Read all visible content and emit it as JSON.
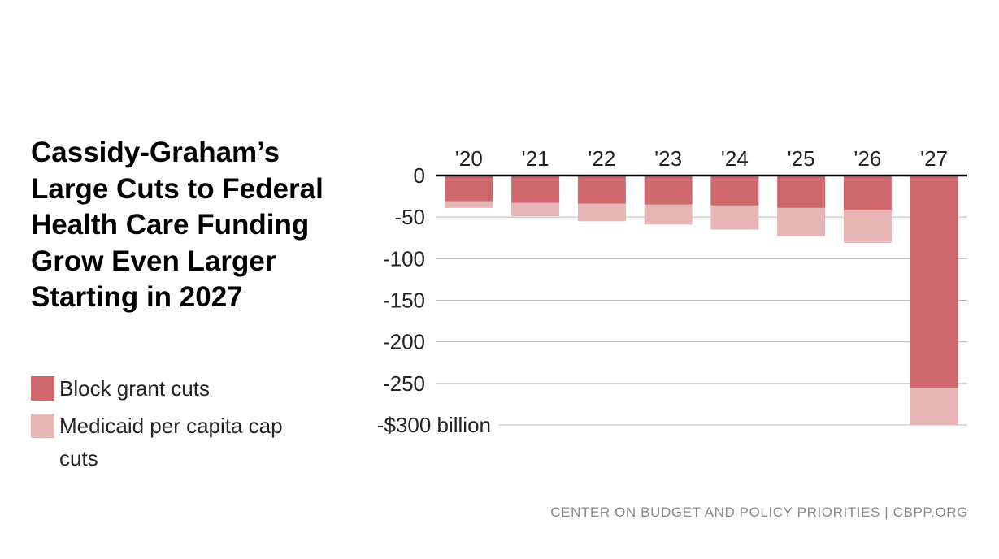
{
  "title": "Cassidy-Graham’s Large Cuts to Federal Health Care Funding Grow Even Larger Starting in 2027",
  "legend": {
    "block": "Block grant cuts",
    "medicaid": "Medicaid per capita cap cuts"
  },
  "source": "CENTER ON BUDGET AND POLICY PRIORITIES | CBPP.ORG",
  "colors": {
    "block": "#cf686d",
    "medicaid": "#e8b5b7"
  },
  "chart_data": {
    "type": "bar",
    "stacked": true,
    "categories": [
      "'20",
      "'21",
      "'22",
      "'23",
      "'24",
      "'25",
      "'26",
      "'27"
    ],
    "series": [
      {
        "name": "Block grant cuts",
        "values": [
          -31,
          -33,
          -34,
          -35,
          -36,
          -39,
          -42,
          -256
        ]
      },
      {
        "name": "Medicaid per capita cap cuts",
        "values": [
          -8,
          -16,
          -21,
          -24,
          -29,
          -34,
          -39,
          -44
        ]
      }
    ],
    "yticks": [
      0,
      -50,
      -100,
      -150,
      -200,
      -250,
      -300
    ],
    "ytick_labels": [
      "0",
      "-50",
      "-100",
      "-150",
      "-200",
      "-250",
      "-$300 billion"
    ],
    "ylim": [
      -300,
      0
    ],
    "xaxis_position": "top",
    "grid": true
  }
}
